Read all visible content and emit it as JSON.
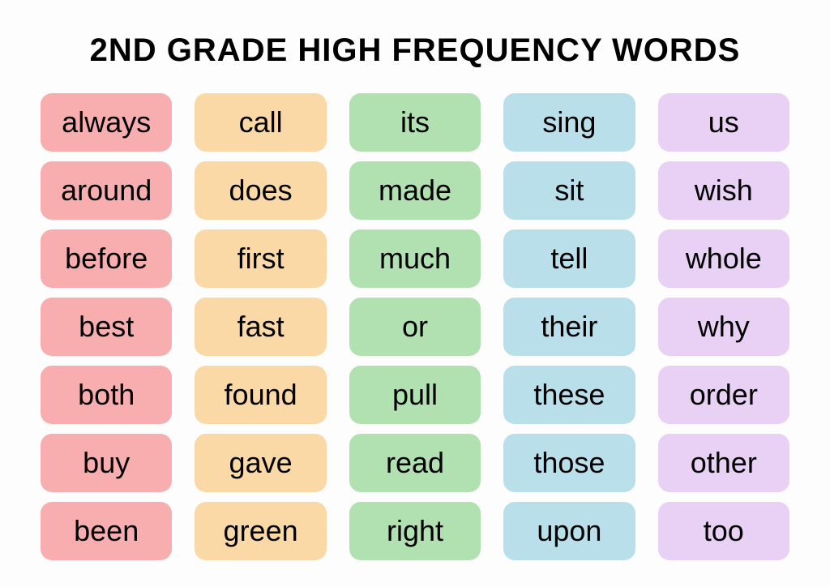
{
  "title": "2ND GRADE HIGH FREQUENCY WORDS",
  "styling": {
    "background_color": "#fdfdfd",
    "title_color": "#000000",
    "title_fontsize": 40,
    "cell_fontsize": 36,
    "cell_text_color": "#000000",
    "cell_border_radius": 14,
    "row_gap": 12,
    "column_gap": 28,
    "rows": 7,
    "cols": 5
  },
  "columns": [
    {
      "color": "#f8aeae",
      "words": [
        "always",
        "around",
        "before",
        "best",
        "both",
        "buy",
        "been"
      ]
    },
    {
      "color": "#fad9a7",
      "words": [
        "call",
        "does",
        "first",
        "fast",
        "found",
        "gave",
        "green"
      ]
    },
    {
      "color": "#b1e0b1",
      "words": [
        "its",
        "made",
        "much",
        "or",
        "pull",
        "read",
        "right"
      ]
    },
    {
      "color": "#b9e0ea",
      "words": [
        "sing",
        "sit",
        "tell",
        "their",
        "these",
        "those",
        "upon"
      ]
    },
    {
      "color": "#e8d1f4",
      "words": [
        "us",
        "wish",
        "whole",
        "why",
        "order",
        "other",
        "too"
      ]
    }
  ]
}
